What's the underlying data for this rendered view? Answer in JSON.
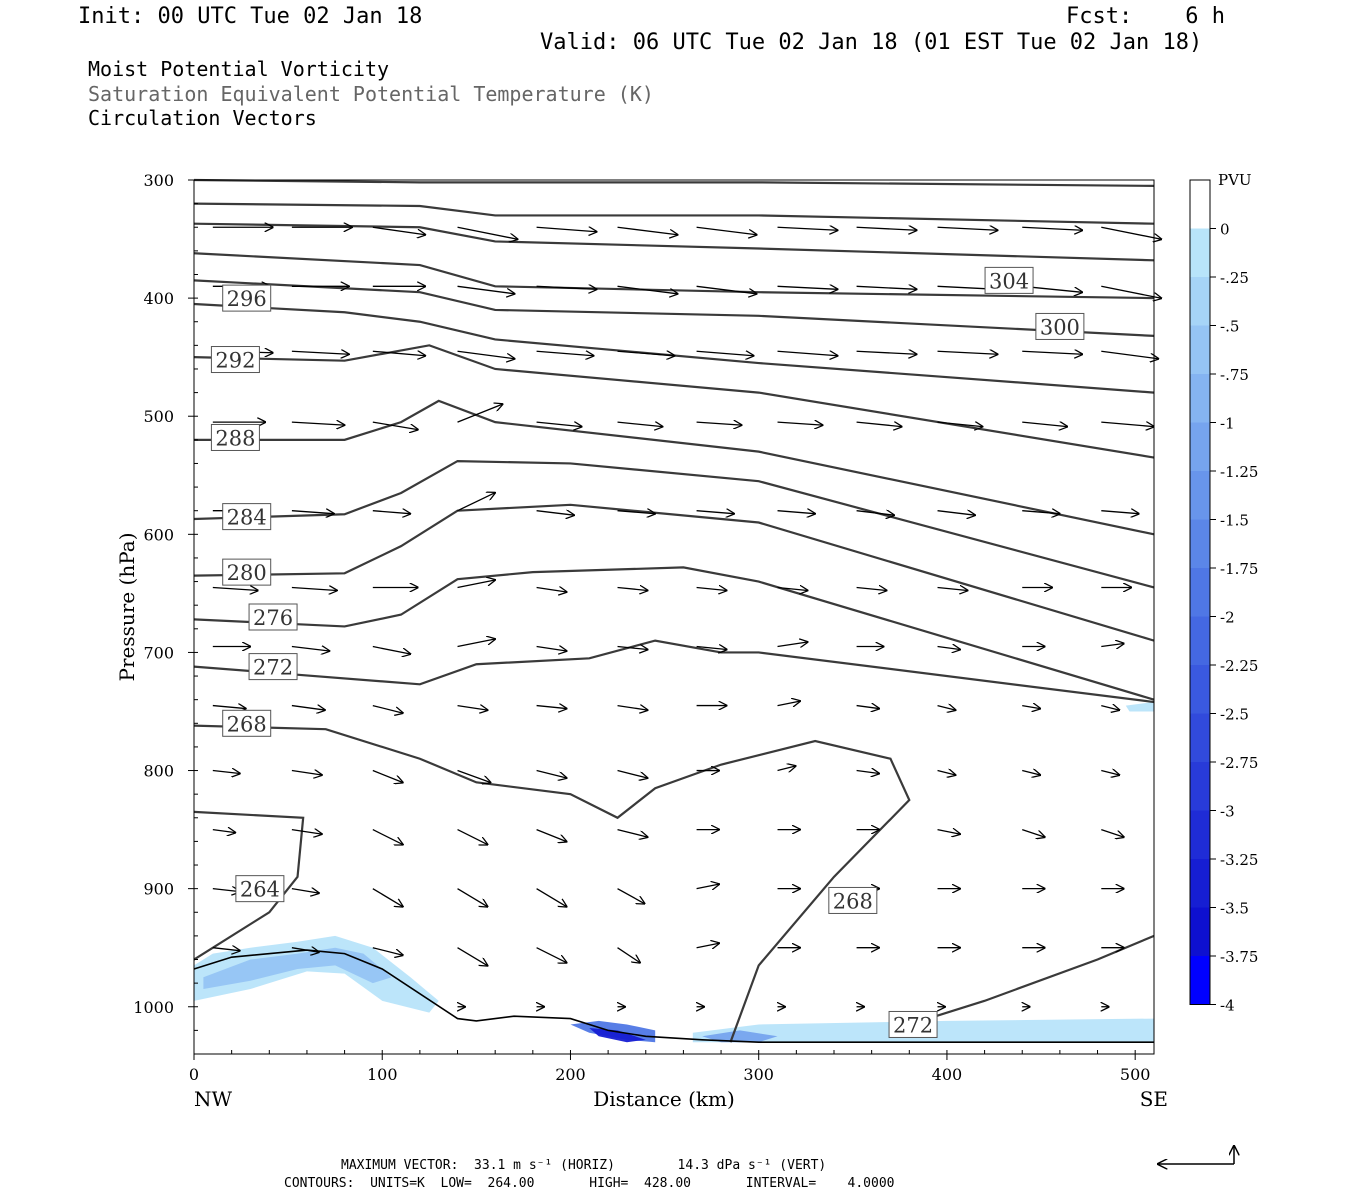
{
  "header": {
    "init": "Init: 00 UTC Tue 02 Jan 18",
    "fcst": "Fcst:    6 h",
    "valid": "Valid: 06 UTC Tue 02 Jan 18 (01 EST Tue 02 Jan 18)",
    "field1": "Moist Potential Vorticity",
    "field2": "Saturation Equivalent Potential Temperature (K)",
    "field3": "Circulation Vectors"
  },
  "footer": {
    "line1": "MAXIMUM VECTOR:  33.1 m s⁻¹ (HORIZ)        14.3 dPa s⁻¹ (VERT)",
    "line2": "CONTOURS:  UNITS=K  LOW=  264.00       HIGH=  428.00       INTERVAL=    4.0000"
  },
  "chart_data": {
    "type": "cross-section",
    "xlabel": "Distance (km)",
    "ylabel": "Pressure (hPa)",
    "xlim": [
      0,
      510
    ],
    "ylim": [
      300,
      1040
    ],
    "xticks": [
      0,
      100,
      200,
      300,
      400,
      500
    ],
    "yticks": [
      300,
      400,
      500,
      600,
      700,
      800,
      900,
      1000
    ],
    "x_end_labels": {
      "left": "NW",
      "right": "SE"
    },
    "colorbar": {
      "units": "PVU",
      "levels": [
        "0",
        "-.25",
        "-.5",
        "-.75",
        "-1",
        "-1.25",
        "-1.5",
        "-1.75",
        "-2",
        "-2.25",
        "-2.5",
        "-2.75",
        "-3",
        "-3.25",
        "-3.5",
        "-3.75",
        "-4"
      ],
      "colors": [
        "#ffffff",
        "#b8e4fa",
        "#a6d4f7",
        "#95c4f4",
        "#85b4f1",
        "#76a4ee",
        "#6895eb",
        "#5b86e8",
        "#4f77e5",
        "#4468e2",
        "#3a59df",
        "#314adc",
        "#283bd9",
        "#1f2cd6",
        "#161ed3",
        "#0e10d0",
        "#0000ff"
      ]
    },
    "contours": [
      {
        "label": "",
        "points": [
          [
            0,
            300
          ],
          [
            120,
            302
          ],
          [
            300,
            302
          ],
          [
            510,
            305
          ]
        ]
      },
      {
        "label": "",
        "points": [
          [
            0,
            320
          ],
          [
            120,
            322
          ],
          [
            160,
            330
          ],
          [
            300,
            330
          ],
          [
            510,
            337
          ]
        ]
      },
      {
        "label": "",
        "points": [
          [
            0,
            337
          ],
          [
            120,
            340
          ],
          [
            160,
            352
          ],
          [
            300,
            358
          ],
          [
            510,
            368
          ]
        ]
      },
      {
        "label": "304",
        "lx": 433,
        "lp": 385,
        "points": [
          [
            0,
            362
          ],
          [
            120,
            372
          ],
          [
            160,
            390
          ],
          [
            300,
            395
          ],
          [
            510,
            400
          ]
        ]
      },
      {
        "label": "300",
        "lx": 460,
        "lp": 424,
        "points": [
          [
            0,
            385
          ],
          [
            120,
            395
          ],
          [
            160,
            410
          ],
          [
            300,
            415
          ],
          [
            510,
            432
          ]
        ]
      },
      {
        "label": "296",
        "lx": 28,
        "lp": 400,
        "points": [
          [
            0,
            405
          ],
          [
            80,
            412
          ],
          [
            120,
            420
          ],
          [
            160,
            435
          ],
          [
            300,
            455
          ],
          [
            510,
            480
          ]
        ]
      },
      {
        "label": "292",
        "lx": 22,
        "lp": 452,
        "points": [
          [
            0,
            450
          ],
          [
            80,
            453
          ],
          [
            125,
            440
          ],
          [
            160,
            460
          ],
          [
            300,
            480
          ],
          [
            510,
            535
          ]
        ]
      },
      {
        "label": "288",
        "lx": 22,
        "lp": 518,
        "points": [
          [
            0,
            520
          ],
          [
            80,
            520
          ],
          [
            110,
            505
          ],
          [
            130,
            487
          ],
          [
            160,
            505
          ],
          [
            300,
            530
          ],
          [
            510,
            600
          ]
        ]
      },
      {
        "label": "284",
        "lx": 28,
        "lp": 585,
        "points": [
          [
            0,
            587
          ],
          [
            80,
            583
          ],
          [
            110,
            565
          ],
          [
            140,
            538
          ],
          [
            200,
            540
          ],
          [
            300,
            555
          ],
          [
            510,
            645
          ]
        ]
      },
      {
        "label": "280",
        "lx": 28,
        "lp": 632,
        "points": [
          [
            0,
            635
          ],
          [
            80,
            633
          ],
          [
            110,
            610
          ],
          [
            140,
            580
          ],
          [
            200,
            575
          ],
          [
            300,
            590
          ],
          [
            510,
            690
          ]
        ]
      },
      {
        "label": "276",
        "lx": 42,
        "lp": 670,
        "points": [
          [
            0,
            672
          ],
          [
            80,
            678
          ],
          [
            110,
            668
          ],
          [
            140,
            638
          ],
          [
            180,
            632
          ],
          [
            260,
            628
          ],
          [
            300,
            640
          ],
          [
            510,
            740
          ]
        ]
      },
      {
        "label": "272",
        "lx": 42,
        "lp": 712,
        "points": [
          [
            0,
            712
          ],
          [
            120,
            727
          ],
          [
            150,
            710
          ],
          [
            210,
            705
          ],
          [
            245,
            690
          ],
          [
            280,
            700
          ],
          [
            300,
            700
          ],
          [
            510,
            742
          ]
        ]
      },
      {
        "label": "268",
        "lx": 28,
        "lp": 760,
        "points": [
          [
            0,
            762
          ],
          [
            70,
            765
          ],
          [
            120,
            790
          ],
          [
            150,
            810
          ],
          [
            200,
            820
          ],
          [
            225,
            840
          ],
          [
            245,
            815
          ],
          [
            280,
            795
          ],
          [
            330,
            775
          ],
          [
            370,
            790
          ],
          [
            380,
            825
          ],
          [
            340,
            890
          ],
          [
            300,
            965
          ],
          [
            285,
            1030
          ]
        ]
      },
      {
        "label": "268",
        "lx": 350,
        "lp": 910,
        "points": []
      },
      {
        "label": "264",
        "lx": 35,
        "lp": 900,
        "points": [
          [
            0,
            960
          ],
          [
            40,
            920
          ],
          [
            55,
            890
          ],
          [
            58,
            840
          ],
          [
            0,
            835
          ]
        ]
      },
      {
        "label": "272",
        "lx": 382,
        "lp": 1015,
        "points": [
          [
            380,
            1015
          ],
          [
            420,
            995
          ],
          [
            480,
            960
          ],
          [
            510,
            940
          ]
        ]
      }
    ],
    "pv_shading": [
      {
        "level": "-.25",
        "points": [
          [
            0,
            965
          ],
          [
            10,
            955
          ],
          [
            30,
            950
          ],
          [
            55,
            945
          ],
          [
            75,
            940
          ],
          [
            95,
            950
          ],
          [
            115,
            975
          ],
          [
            130,
            995
          ],
          [
            125,
            1005
          ],
          [
            100,
            995
          ],
          [
            80,
            972
          ],
          [
            60,
            970
          ],
          [
            30,
            985
          ],
          [
            0,
            995
          ]
        ]
      },
      {
        "level": "-.75",
        "points": [
          [
            5,
            975
          ],
          [
            30,
            960
          ],
          [
            55,
            955
          ],
          [
            75,
            950
          ],
          [
            90,
            955
          ],
          [
            105,
            975
          ],
          [
            95,
            980
          ],
          [
            75,
            965
          ],
          [
            55,
            968
          ],
          [
            30,
            978
          ],
          [
            5,
            985
          ]
        ]
      },
      {
        "level": "-2",
        "points": [
          [
            200,
            1015
          ],
          [
            215,
            1012
          ],
          [
            230,
            1015
          ],
          [
            245,
            1020
          ],
          [
            245,
            1030
          ],
          [
            230,
            1028
          ],
          [
            210,
            1022
          ]
        ]
      },
      {
        "level": "-3.5",
        "points": [
          [
            210,
            1018
          ],
          [
            225,
            1020
          ],
          [
            240,
            1028
          ],
          [
            230,
            1030
          ],
          [
            215,
            1025
          ]
        ]
      },
      {
        "level": "-.25",
        "points": [
          [
            265,
            1022
          ],
          [
            300,
            1015
          ],
          [
            400,
            1012
          ],
          [
            510,
            1010
          ],
          [
            510,
            1030
          ],
          [
            400,
            1030
          ],
          [
            300,
            1030
          ],
          [
            265,
            1030
          ]
        ]
      },
      {
        "level": "-1.25",
        "points": [
          [
            270,
            1025
          ],
          [
            290,
            1020
          ],
          [
            310,
            1025
          ],
          [
            300,
            1030
          ],
          [
            280,
            1030
          ]
        ]
      },
      {
        "level": "-.25",
        "points": [
          [
            495,
            745
          ],
          [
            510,
            742
          ],
          [
            510,
            750
          ],
          [
            497,
            750
          ]
        ]
      }
    ],
    "terrain": [
      [
        0,
        968
      ],
      [
        20,
        958
      ],
      [
        60,
        952
      ],
      [
        80,
        955
      ],
      [
        100,
        968
      ],
      [
        140,
        1010
      ],
      [
        150,
        1012
      ],
      [
        170,
        1008
      ],
      [
        200,
        1010
      ],
      [
        220,
        1020
      ],
      [
        240,
        1025
      ],
      [
        270,
        1028
      ],
      [
        300,
        1030
      ],
      [
        400,
        1030
      ],
      [
        510,
        1030
      ]
    ],
    "vectors": {
      "columns": [
        10,
        52,
        95,
        140,
        182,
        225,
        267,
        310,
        352,
        395,
        440,
        482
      ],
      "rows": [
        {
          "p": 340,
          "u": [
            40,
            40,
            35,
            40,
            40,
            40,
            40,
            40,
            40,
            40,
            40,
            40
          ],
          "w": [
            0,
            0,
            -5,
            -8,
            -3,
            -5,
            -5,
            -2,
            -2,
            -2,
            -2,
            -8
          ]
        },
        {
          "p": 390,
          "u": [
            38,
            38,
            35,
            38,
            40,
            40,
            40,
            40,
            40,
            40,
            40,
            40
          ],
          "w": [
            0,
            0,
            0,
            -5,
            -2,
            -5,
            -5,
            -2,
            -2,
            -2,
            -4,
            -8
          ]
        },
        {
          "p": 445,
          "u": [
            40,
            38,
            35,
            38,
            38,
            38,
            38,
            40,
            40,
            40,
            40,
            38
          ],
          "w": [
            -1,
            -2,
            -3,
            -5,
            -3,
            -3,
            -3,
            -3,
            -2,
            -2,
            -2,
            -5
          ]
        },
        {
          "p": 505,
          "u": [
            35,
            35,
            30,
            30,
            30,
            30,
            30,
            30,
            30,
            30,
            30,
            35
          ],
          "w": [
            0,
            -2,
            -5,
            12,
            -3,
            -3,
            -2,
            -2,
            -3,
            -3,
            -3,
            -3
          ]
        },
        {
          "p": 580,
          "u": [
            28,
            28,
            25,
            25,
            25,
            25,
            25,
            25,
            25,
            25,
            25,
            25
          ],
          "w": [
            0,
            -2,
            -2,
            12,
            -3,
            -2,
            -2,
            -2,
            -3,
            -3,
            -2,
            -2
          ]
        },
        {
          "p": 645,
          "u": [
            30,
            30,
            30,
            25,
            20,
            20,
            20,
            20,
            20,
            20,
            20,
            20
          ],
          "w": [
            -2,
            -2,
            0,
            5,
            -3,
            -2,
            -2,
            -2,
            -2,
            -2,
            0,
            0
          ]
        },
        {
          "p": 695,
          "u": [
            25,
            25,
            25,
            25,
            20,
            20,
            20,
            20,
            18,
            15,
            15,
            15
          ],
          "w": [
            0,
            -3,
            -5,
            5,
            -3,
            -2,
            -2,
            3,
            0,
            -2,
            0,
            2
          ]
        },
        {
          "p": 745,
          "u": [
            22,
            22,
            20,
            20,
            20,
            20,
            20,
            15,
            15,
            12,
            12,
            12
          ],
          "w": [
            -2,
            -3,
            -5,
            -3,
            -2,
            -3,
            0,
            3,
            -2,
            -3,
            -2,
            -3
          ]
        },
        {
          "p": 800,
          "u": [
            18,
            20,
            20,
            22,
            20,
            20,
            15,
            12,
            15,
            12,
            12,
            12
          ],
          "w": [
            -2,
            -3,
            -8,
            -8,
            -5,
            -5,
            0,
            3,
            -2,
            -3,
            -3,
            -3
          ]
        },
        {
          "p": 850,
          "u": [
            15,
            20,
            20,
            20,
            20,
            20,
            15,
            15,
            15,
            15,
            15,
            15
          ],
          "w": [
            -2,
            -3,
            -10,
            -10,
            -8,
            -5,
            0,
            0,
            0,
            -3,
            -5,
            -5
          ]
        },
        {
          "p": 900,
          "u": [
            18,
            18,
            20,
            20,
            20,
            18,
            15,
            15,
            15,
            15,
            15,
            15
          ],
          "w": [
            -2,
            -3,
            -12,
            -12,
            -12,
            -10,
            3,
            0,
            0,
            0,
            0,
            0
          ]
        },
        {
          "p": 950,
          "u": [
            18,
            18,
            20,
            20,
            20,
            15,
            15,
            15,
            15,
            15,
            15,
            15
          ],
          "w": [
            -2,
            -3,
            -5,
            -12,
            -10,
            -10,
            3,
            0,
            0,
            0,
            0,
            0
          ]
        },
        {
          "p": 1000,
          "u": [
            0,
            0,
            0,
            5,
            5,
            5,
            5,
            5,
            5,
            5,
            5,
            5
          ],
          "w": [
            0,
            0,
            0,
            0,
            0,
            0,
            0,
            0,
            0,
            0,
            0,
            0
          ]
        }
      ]
    }
  }
}
